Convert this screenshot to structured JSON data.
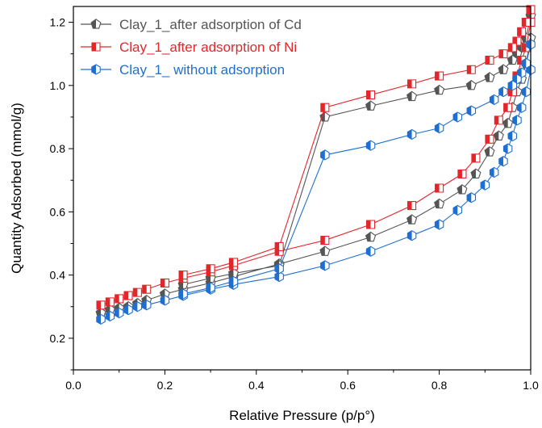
{
  "chart_data": {
    "type": "scatter",
    "title": "",
    "xlabel": "Relative Pressure (p/p°)",
    "ylabel": "Quantity Adsorbed (mmol/g)",
    "xlim": [
      0.0,
      1.0
    ],
    "ylim": [
      0.1,
      1.25
    ],
    "x_ticks": [
      0.0,
      0.2,
      0.4,
      0.6,
      0.8,
      1.0
    ],
    "x_tick_labels": [
      "0.0",
      "0.2",
      "0.4",
      "0.6",
      "0.8",
      "1.0"
    ],
    "y_ticks": [
      0.2,
      0.4,
      0.6,
      0.8,
      1.0,
      1.2
    ],
    "y_tick_labels": [
      "0.2",
      "0.4",
      "0.6",
      "0.8",
      "1.0",
      "1.2"
    ],
    "grid": false,
    "legend_position": "top-left",
    "series": [
      {
        "name": "Clay_1_after adsorption of Cd",
        "color": "#555555",
        "marker": "pentagon",
        "adsorption": {
          "x": [
            0.06,
            0.08,
            0.1,
            0.12,
            0.14,
            0.16,
            0.2,
            0.24,
            0.3,
            0.35,
            0.45,
            0.55,
            0.65,
            0.74,
            0.8,
            0.85,
            0.88,
            0.91,
            0.93,
            0.95,
            0.96,
            0.97,
            0.98,
            0.99,
            1.0
          ],
          "y": [
            0.28,
            0.29,
            0.295,
            0.3,
            0.31,
            0.32,
            0.34,
            0.355,
            0.375,
            0.395,
            0.435,
            0.475,
            0.52,
            0.575,
            0.625,
            0.67,
            0.72,
            0.79,
            0.84,
            0.88,
            0.93,
            0.98,
            1.02,
            1.07,
            1.15
          ]
        },
        "desorption": {
          "x": [
            1.0,
            0.99,
            0.98,
            0.97,
            0.96,
            0.94,
            0.91,
            0.87,
            0.8,
            0.74,
            0.65,
            0.55,
            0.45,
            0.35,
            0.3,
            0.24
          ],
          "y": [
            1.22,
            1.15,
            1.12,
            1.1,
            1.08,
            1.05,
            1.025,
            1.0,
            0.985,
            0.965,
            0.935,
            0.9,
            0.43,
            0.405,
            0.39,
            0.37
          ]
        }
      },
      {
        "name": "Clay_1_after adsorption of Ni",
        "color": "#e3262b",
        "marker": "square",
        "adsorption": {
          "x": [
            0.06,
            0.08,
            0.1,
            0.12,
            0.14,
            0.16,
            0.2,
            0.24,
            0.3,
            0.35,
            0.45,
            0.55,
            0.65,
            0.74,
            0.8,
            0.85,
            0.88,
            0.91,
            0.93,
            0.95,
            0.96,
            0.97,
            0.98,
            0.99,
            1.0
          ],
          "y": [
            0.305,
            0.315,
            0.325,
            0.335,
            0.345,
            0.355,
            0.375,
            0.39,
            0.41,
            0.43,
            0.475,
            0.51,
            0.56,
            0.62,
            0.675,
            0.72,
            0.77,
            0.83,
            0.89,
            0.93,
            0.98,
            1.03,
            1.08,
            1.12,
            1.2
          ]
        },
        "desorption": {
          "x": [
            1.0,
            0.99,
            0.98,
            0.97,
            0.96,
            0.94,
            0.91,
            0.87,
            0.8,
            0.74,
            0.65,
            0.55,
            0.45,
            0.35,
            0.3,
            0.24
          ],
          "y": [
            1.24,
            1.2,
            1.17,
            1.14,
            1.12,
            1.1,
            1.08,
            1.05,
            1.03,
            1.005,
            0.97,
            0.93,
            0.49,
            0.44,
            0.42,
            0.4
          ]
        }
      },
      {
        "name": "Clay_1_ without adsorption",
        "color": "#1f6fd0",
        "marker": "hexagon",
        "adsorption": {
          "x": [
            0.06,
            0.08,
            0.1,
            0.12,
            0.14,
            0.16,
            0.2,
            0.24,
            0.3,
            0.35,
            0.45,
            0.55,
            0.65,
            0.74,
            0.8,
            0.84,
            0.87,
            0.9,
            0.92,
            0.94,
            0.95,
            0.96,
            0.97,
            0.98,
            0.99,
            1.0
          ],
          "y": [
            0.26,
            0.27,
            0.28,
            0.29,
            0.3,
            0.305,
            0.32,
            0.335,
            0.355,
            0.37,
            0.395,
            0.43,
            0.475,
            0.525,
            0.56,
            0.605,
            0.645,
            0.685,
            0.725,
            0.76,
            0.8,
            0.84,
            0.89,
            0.93,
            0.98,
            1.05
          ]
        },
        "desorption": {
          "x": [
            1.0,
            0.99,
            0.98,
            0.97,
            0.96,
            0.94,
            0.92,
            0.87,
            0.84,
            0.8,
            0.74,
            0.65,
            0.55,
            0.45,
            0.35,
            0.3,
            0.24
          ],
          "y": [
            1.13,
            1.07,
            1.04,
            1.02,
            1.0,
            0.98,
            0.955,
            0.92,
            0.9,
            0.865,
            0.845,
            0.81,
            0.78,
            0.42,
            0.38,
            0.36,
            0.34
          ]
        }
      }
    ]
  }
}
